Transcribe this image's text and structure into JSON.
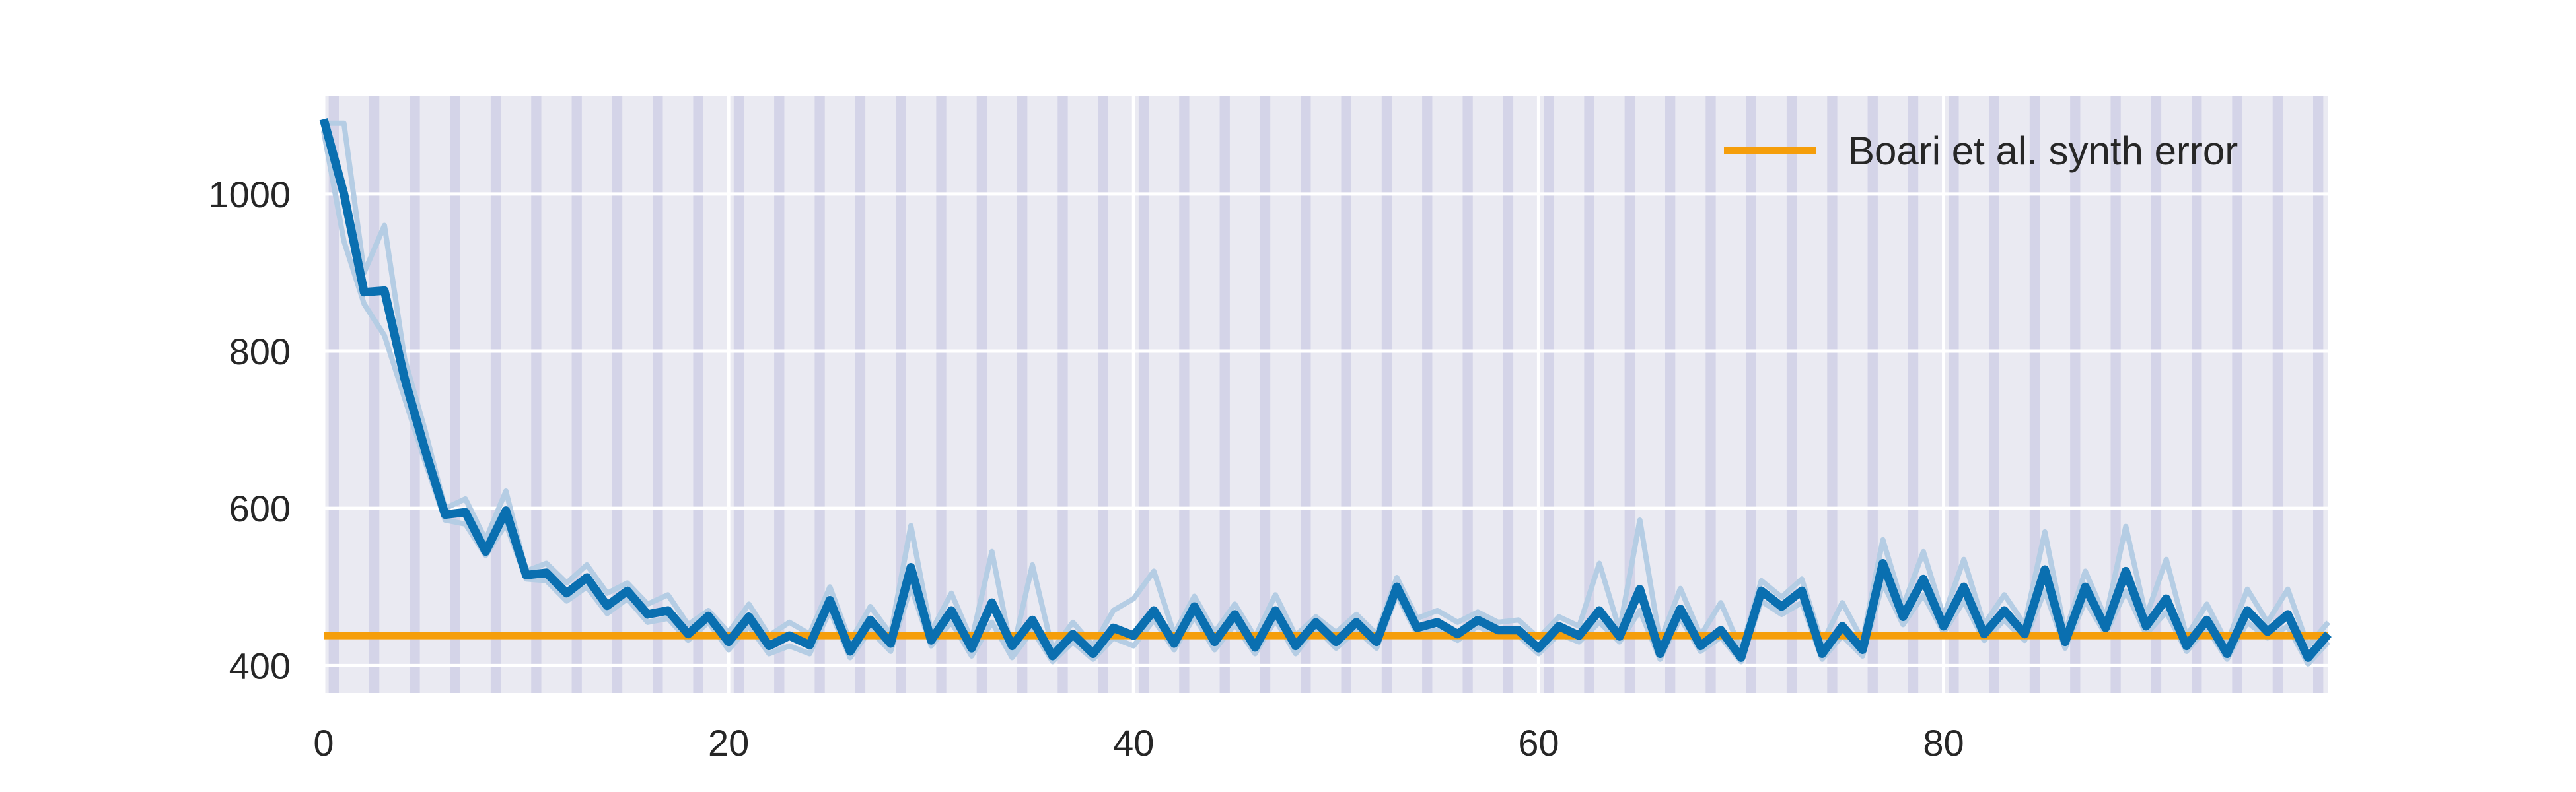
{
  "chart_data": {
    "type": "line",
    "title": "",
    "xlabel": "",
    "ylabel": "",
    "xlim": [
      0,
      99
    ],
    "ylim": [
      365,
      1125
    ],
    "xticks": [
      0,
      20,
      40,
      60,
      80
    ],
    "yticks": [
      400,
      600,
      800,
      1000
    ],
    "grid": true,
    "background": "#eaeaf2",
    "stripe_color": "#d4d4e8",
    "legend": {
      "position": "top-right",
      "entries": [
        "Boari et al. synth error"
      ]
    },
    "series": [
      {
        "name": "",
        "style": "main",
        "color": "#0a6fb0",
        "x": [
          0,
          1,
          2,
          3,
          4,
          5,
          6,
          7,
          8,
          9,
          10,
          11,
          12,
          13,
          14,
          15,
          16,
          17,
          18,
          19,
          20,
          21,
          22,
          23,
          24,
          25,
          26,
          27,
          28,
          29,
          30,
          31,
          32,
          33,
          34,
          35,
          36,
          37,
          38,
          39,
          40,
          41,
          42,
          43,
          44,
          45,
          46,
          47,
          48,
          49,
          50,
          51,
          52,
          53,
          54,
          55,
          56,
          57,
          58,
          59,
          60,
          61,
          62,
          63,
          64,
          65,
          66,
          67,
          68,
          69,
          70,
          71,
          72,
          73,
          74,
          75,
          76,
          77,
          78,
          79,
          80,
          81,
          82,
          83,
          84,
          85,
          86,
          87,
          88,
          89,
          90,
          91,
          92,
          93,
          94,
          95,
          96,
          97,
          98,
          99
        ],
        "y": [
          1095,
          1000,
          875,
          877,
          765,
          675,
          592,
          595,
          545,
          597,
          515,
          518,
          492,
          512,
          476,
          495,
          465,
          470,
          440,
          463,
          430,
          462,
          425,
          438,
          426,
          483,
          418,
          458,
          428,
          525,
          432,
          470,
          422,
          480,
          425,
          458,
          412,
          440,
          415,
          448,
          438,
          470,
          428,
          475,
          430,
          465,
          423,
          470,
          425,
          455,
          430,
          455,
          430,
          500,
          448,
          455,
          440,
          458,
          445,
          445,
          422,
          450,
          438,
          470,
          437,
          497,
          415,
          472,
          425,
          445,
          410,
          495,
          475,
          495,
          415,
          450,
          420,
          530,
          462,
          510,
          450,
          500,
          440,
          470,
          440,
          522,
          430,
          500,
          448,
          520,
          450,
          485,
          425,
          458,
          415,
          470,
          443,
          465,
          410,
          440
        ]
      },
      {
        "name": "",
        "style": "faint",
        "color": "#b5cde4",
        "x": [
          0,
          1,
          2,
          3,
          4,
          5,
          6,
          7,
          8,
          9,
          10,
          11,
          12,
          13,
          14,
          15,
          16,
          17,
          18,
          19,
          20,
          21,
          22,
          23,
          24,
          25,
          26,
          27,
          28,
          29,
          30,
          31,
          32,
          33,
          34,
          35,
          36,
          37,
          38,
          39,
          40,
          41,
          42,
          43,
          44,
          45,
          46,
          47,
          48,
          49,
          50,
          51,
          52,
          53,
          54,
          55,
          56,
          57,
          58,
          59,
          60,
          61,
          62,
          63,
          64,
          65,
          66,
          67,
          68,
          69,
          70,
          71,
          72,
          73,
          74,
          75,
          76,
          77,
          78,
          79,
          80,
          81,
          82,
          83,
          84,
          85,
          86,
          87,
          88,
          89,
          90,
          91,
          92,
          93,
          94,
          95,
          96,
          97,
          98,
          99
        ],
        "y": [
          1090,
          1090,
          900,
          960,
          790,
          700,
          600,
          612,
          560,
          622,
          520,
          530,
          505,
          528,
          492,
          505,
          478,
          490,
          452,
          470,
          442,
          478,
          438,
          455,
          440,
          500,
          430,
          475,
          440,
          578,
          443,
          492,
          432,
          545,
          415,
          528,
          420,
          455,
          425,
          470,
          485,
          520,
          440,
          488,
          442,
          478,
          436,
          490,
          438,
          462,
          442,
          465,
          440,
          512,
          460,
          470,
          455,
          468,
          455,
          458,
          435,
          462,
          450,
          530,
          445,
          585,
          430,
          498,
          438,
          480,
          420,
          508,
          487,
          510,
          428,
          480,
          432,
          560,
          475,
          545,
          462,
          535,
          452,
          490,
          452,
          570,
          442,
          520,
          460,
          577,
          462,
          535,
          437,
          478,
          428,
          497,
          455,
          497,
          425,
          455
        ]
      },
      {
        "name": "",
        "style": "faint",
        "color": "#b5cde4",
        "x": [
          0,
          1,
          2,
          3,
          4,
          5,
          6,
          7,
          8,
          9,
          10,
          11,
          12,
          13,
          14,
          15,
          16,
          17,
          18,
          19,
          20,
          21,
          22,
          23,
          24,
          25,
          26,
          27,
          28,
          29,
          30,
          31,
          32,
          33,
          34,
          35,
          36,
          37,
          38,
          39,
          40,
          41,
          42,
          43,
          44,
          45,
          46,
          47,
          48,
          49,
          50,
          51,
          52,
          53,
          54,
          55,
          56,
          57,
          58,
          59,
          60,
          61,
          62,
          63,
          64,
          65,
          66,
          67,
          68,
          69,
          70,
          71,
          72,
          73,
          74,
          75,
          76,
          77,
          78,
          79,
          80,
          81,
          82,
          83,
          84,
          85,
          86,
          87,
          88,
          89,
          90,
          91,
          92,
          93,
          94,
          95,
          96,
          97,
          98,
          99
        ],
        "y": [
          1080,
          940,
          860,
          820,
          740,
          660,
          585,
          580,
          540,
          580,
          510,
          508,
          482,
          500,
          466,
          485,
          455,
          460,
          432,
          455,
          420,
          450,
          415,
          425,
          415,
          470,
          410,
          445,
          418,
          500,
          425,
          455,
          412,
          455,
          410,
          445,
          405,
          430,
          408,
          435,
          425,
          458,
          420,
          462,
          420,
          452,
          415,
          458,
          415,
          448,
          422,
          445,
          422,
          490,
          440,
          445,
          432,
          450,
          437,
          438,
          415,
          440,
          430,
          455,
          430,
          470,
          408,
          460,
          418,
          436,
          405,
          482,
          465,
          480,
          408,
          438,
          412,
          505,
          452,
          490,
          442,
          482,
          432,
          458,
          432,
          495,
          422,
          482,
          440,
          495,
          440,
          468,
          418,
          448,
          408,
          455,
          435,
          450,
          402,
          430
        ]
      },
      {
        "name": "Boari et al. synth error",
        "style": "reference",
        "color": "#f59e0b",
        "x": [
          0,
          99
        ],
        "y": [
          438,
          438
        ]
      }
    ]
  }
}
